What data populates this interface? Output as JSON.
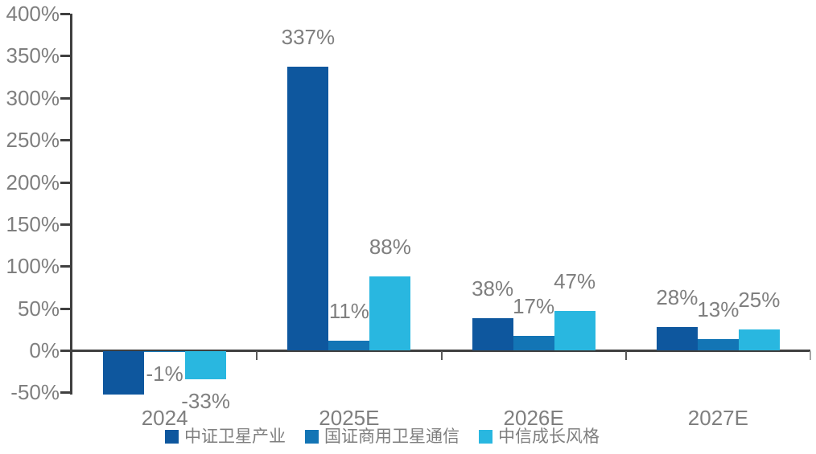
{
  "chart_data": {
    "type": "bar",
    "title": "",
    "categories": [
      "2024",
      "2025E",
      "2026E",
      "2027E"
    ],
    "series": [
      {
        "name": "中证卫星产业",
        "color": "#0E579E",
        "values": [
          -52,
          337,
          38,
          28
        ],
        "labels": [
          "",
          "337%",
          "38%",
          "28%"
        ]
      },
      {
        "name": "国证商用卫星通信",
        "color": "#1375B5",
        "values": [
          -1,
          11,
          17,
          13
        ],
        "labels": [
          "-1%",
          "11%",
          "17%",
          "13%"
        ]
      },
      {
        "name": "中信成长风格",
        "color": "#29B7E0",
        "values": [
          -33,
          88,
          47,
          25
        ],
        "labels": [
          "-33%",
          "88%",
          "47%",
          "25%"
        ]
      }
    ],
    "y_axis": {
      "min": -50,
      "max": 400,
      "step": 50,
      "unit": "%",
      "tick_labels": [
        "400%",
        "350%",
        "300%",
        "250%",
        "200%",
        "150%",
        "100%",
        "50%",
        "0%",
        "-50%"
      ]
    },
    "x_axis": {
      "tick_labels": [
        "2024",
        "2025E",
        "2026E",
        "2027E"
      ]
    },
    "legend_position": "bottom",
    "grid": false,
    "colors": {
      "axis_line": "#3F3F3F",
      "tick_mark": "#595959",
      "axis_text": "#7F7F7F",
      "data_label_text": "#7F7F7F",
      "background": "#FFFFFF"
    }
  }
}
